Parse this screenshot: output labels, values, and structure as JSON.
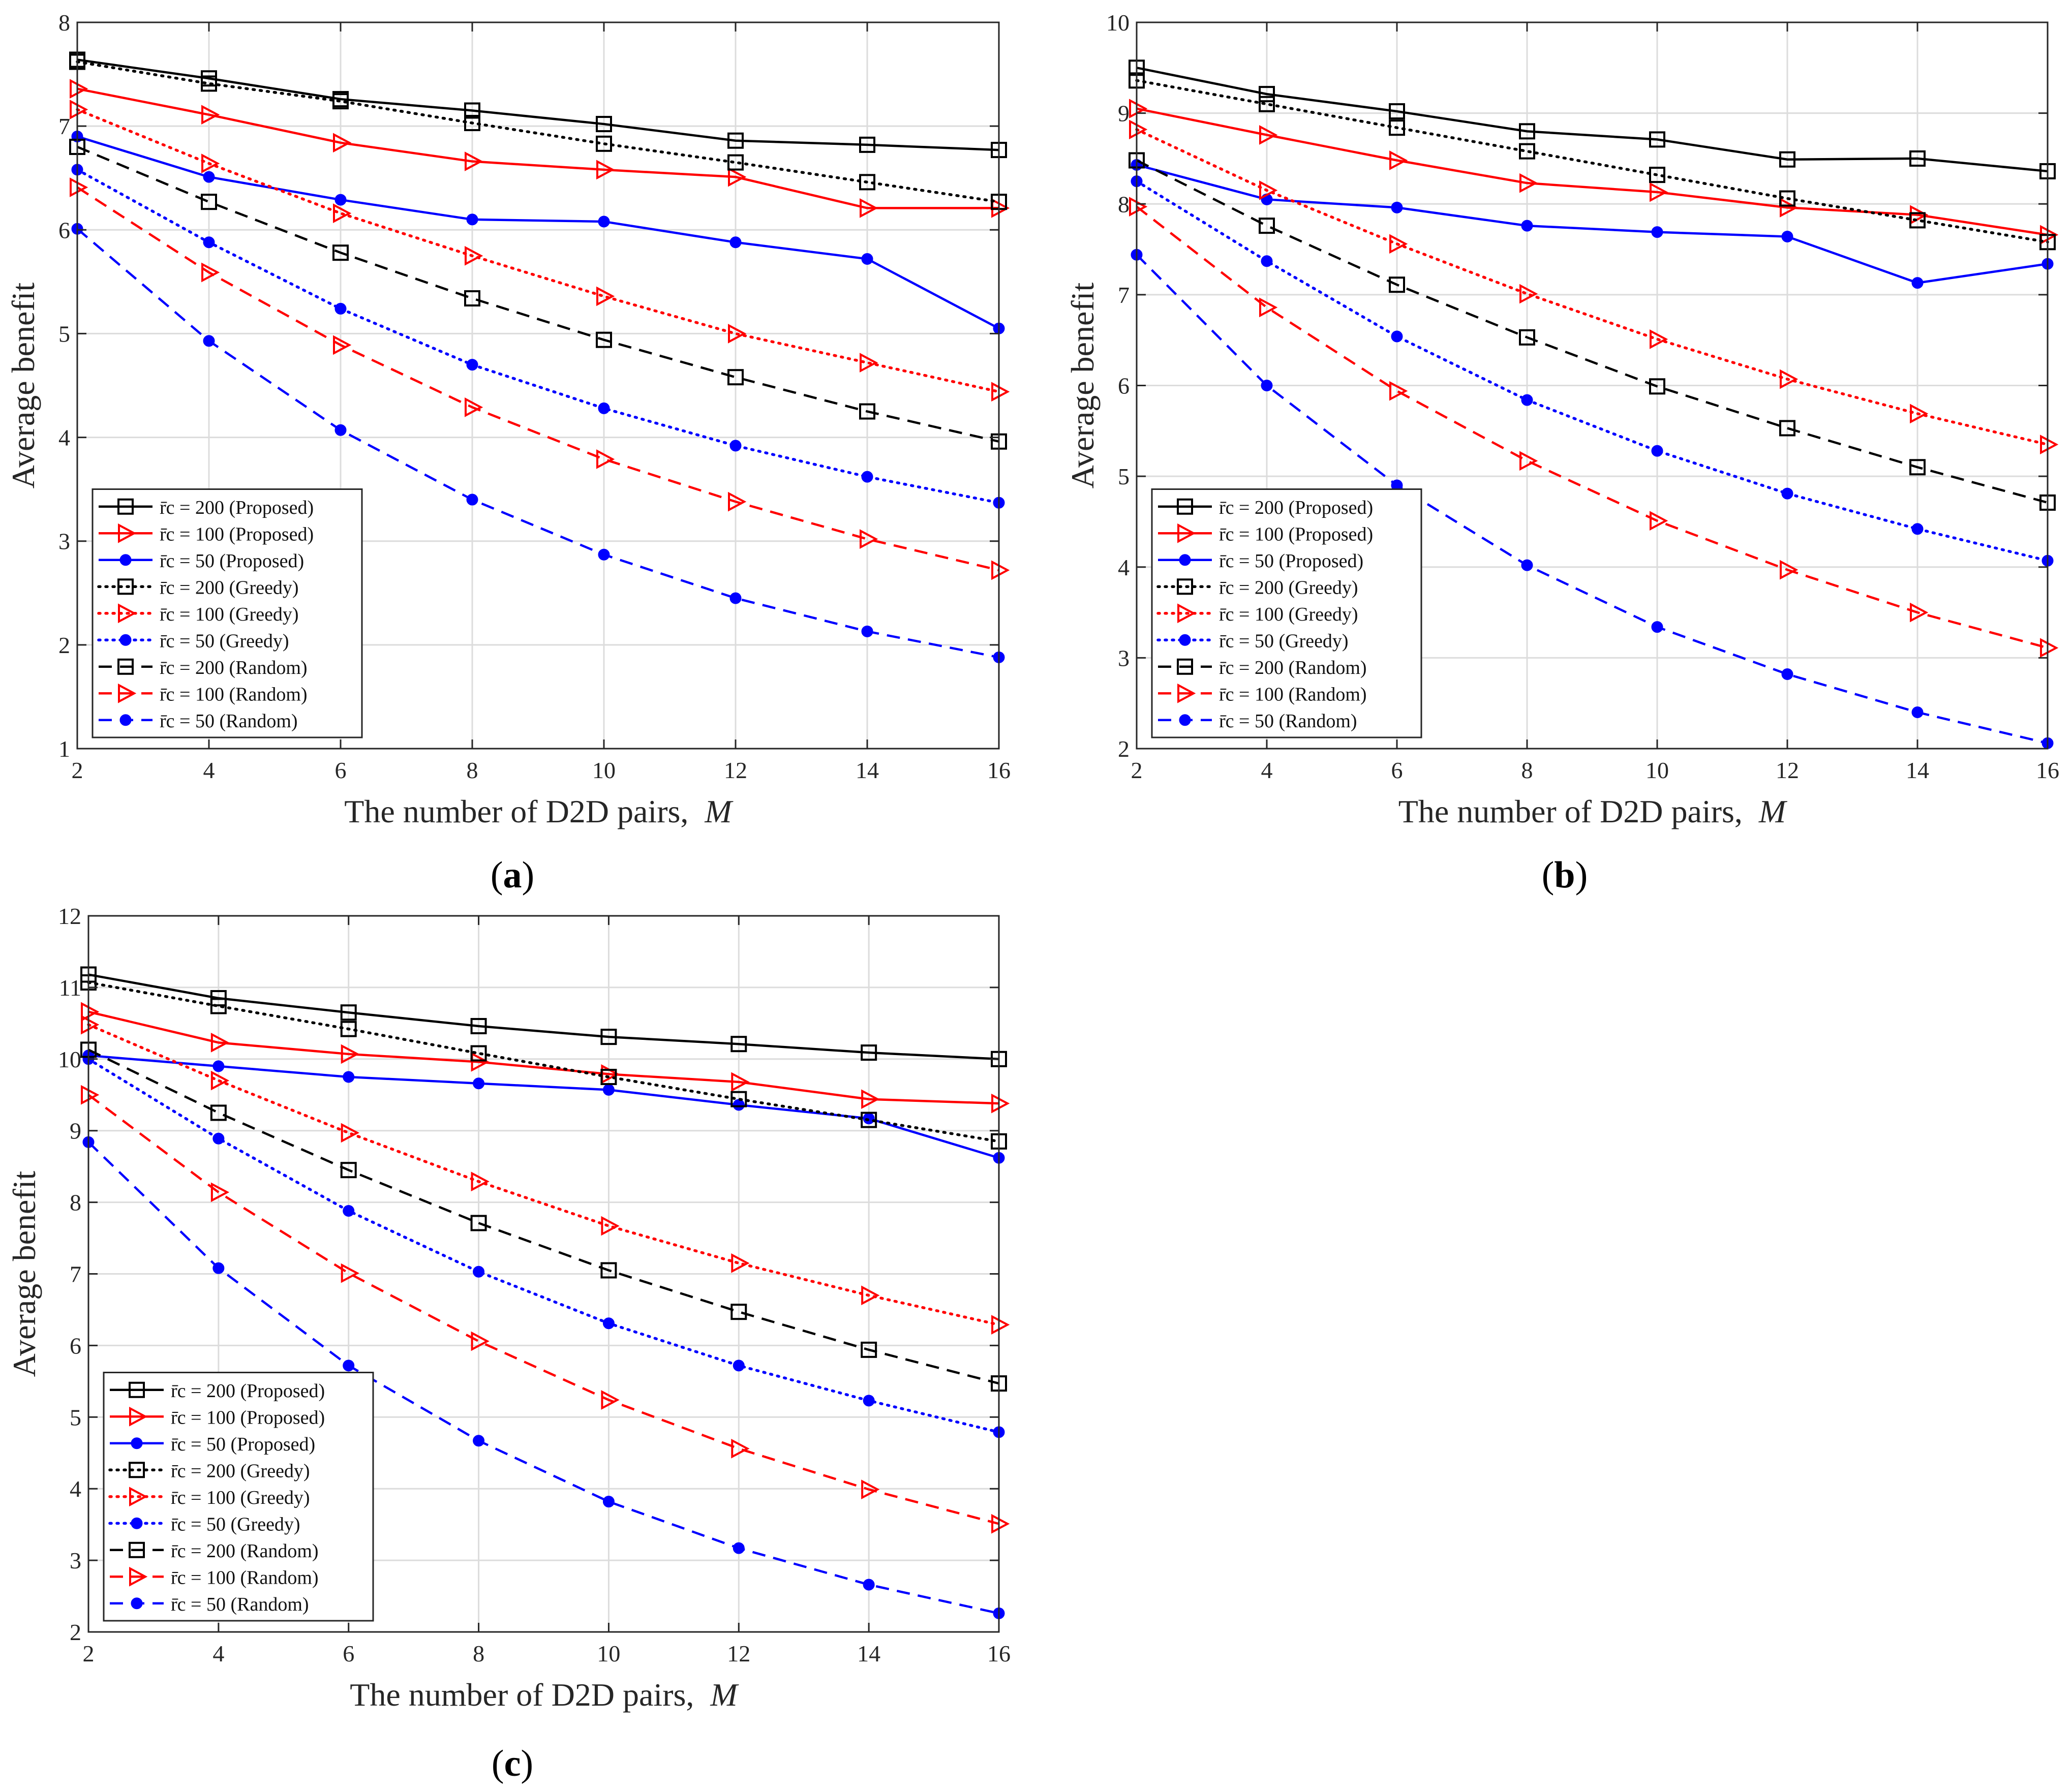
{
  "chart_data": [
    {
      "type": "line",
      "panel": "a",
      "caption_letter": "a",
      "xlabel": "The number of D2D pairs,",
      "xlabel_var": "M",
      "ylabel": "Average benefit",
      "xlim": [
        2,
        16
      ],
      "ylim": [
        1,
        8
      ],
      "xticks": [
        2,
        4,
        6,
        8,
        10,
        12,
        14,
        16
      ],
      "yticks": [
        1,
        2,
        3,
        4,
        5,
        6,
        7,
        8
      ],
      "grid": true,
      "legend_position": "bottom-left",
      "x": [
        2,
        4,
        6,
        8,
        10,
        12,
        14,
        16
      ],
      "series": [
        {
          "name": "r̄c = 200 (Proposed)",
          "color": "#000000",
          "dash": "solid",
          "marker": "square",
          "values": [
            7.64,
            7.46,
            7.26,
            7.15,
            7.02,
            6.86,
            6.82,
            6.77
          ]
        },
        {
          "name": "r̄c = 100 (Proposed)",
          "color": "#ff0000",
          "dash": "solid",
          "marker": "triangle",
          "values": [
            7.36,
            7.11,
            6.84,
            6.66,
            6.58,
            6.51,
            6.21,
            6.21
          ]
        },
        {
          "name": "r̄c = 50 (Proposed)",
          "color": "#0000ff",
          "dash": "solid",
          "marker": "dot",
          "values": [
            6.9,
            6.51,
            6.29,
            6.1,
            6.08,
            5.88,
            5.72,
            5.05
          ]
        },
        {
          "name": "r̄c = 200 (Greedy)",
          "color": "#000000",
          "dash": "dotted",
          "marker": "square",
          "values": [
            7.62,
            7.41,
            7.24,
            7.03,
            6.83,
            6.65,
            6.46,
            6.27
          ]
        },
        {
          "name": "r̄c = 100 (Greedy)",
          "color": "#ff0000",
          "dash": "dotted",
          "marker": "triangle",
          "values": [
            7.16,
            6.64,
            6.16,
            5.75,
            5.36,
            5.0,
            4.72,
            4.44
          ]
        },
        {
          "name": "r̄c = 50 (Greedy)",
          "color": "#0000ff",
          "dash": "dotted",
          "marker": "dot",
          "values": [
            6.58,
            5.88,
            5.24,
            4.7,
            4.28,
            3.92,
            3.62,
            3.37
          ]
        },
        {
          "name": "r̄c = 200 (Random)",
          "color": "#000000",
          "dash": "dashed",
          "marker": "square",
          "values": [
            6.8,
            6.27,
            5.78,
            5.34,
            4.94,
            4.58,
            4.25,
            3.96
          ]
        },
        {
          "name": "r̄c = 100 (Random)",
          "color": "#ff0000",
          "dash": "dashed",
          "marker": "triangle",
          "values": [
            6.41,
            5.59,
            4.89,
            4.29,
            3.79,
            3.38,
            3.02,
            2.72
          ]
        },
        {
          "name": "r̄c = 50 (Random)",
          "color": "#0000ff",
          "dash": "dashed",
          "marker": "dot",
          "values": [
            6.01,
            4.93,
            4.07,
            3.4,
            2.87,
            2.45,
            2.13,
            1.88
          ]
        }
      ]
    },
    {
      "type": "line",
      "panel": "b",
      "caption_letter": "b",
      "xlabel": "The number of D2D pairs,",
      "xlabel_var": "M",
      "ylabel": "Average benefit",
      "xlim": [
        2,
        16
      ],
      "ylim": [
        2,
        10
      ],
      "xticks": [
        2,
        4,
        6,
        8,
        10,
        12,
        14,
        16
      ],
      "yticks": [
        2,
        3,
        4,
        5,
        6,
        7,
        8,
        9,
        10
      ],
      "grid": true,
      "legend_position": "bottom-left",
      "x": [
        2,
        4,
        6,
        8,
        10,
        12,
        14,
        16
      ],
      "series": [
        {
          "name": "r̄c = 200 (Proposed)",
          "color": "#000000",
          "dash": "solid",
          "marker": "square",
          "values": [
            9.5,
            9.21,
            9.02,
            8.8,
            8.71,
            8.49,
            8.5,
            8.36
          ]
        },
        {
          "name": "r̄c = 100 (Proposed)",
          "color": "#ff0000",
          "dash": "solid",
          "marker": "triangle",
          "values": [
            9.05,
            8.76,
            8.48,
            8.23,
            8.13,
            7.96,
            7.88,
            7.66
          ]
        },
        {
          "name": "r̄c = 50 (Proposed)",
          "color": "#0000ff",
          "dash": "solid",
          "marker": "dot",
          "values": [
            8.43,
            8.05,
            7.96,
            7.76,
            7.69,
            7.64,
            7.13,
            7.34
          ]
        },
        {
          "name": "r̄c = 200 (Greedy)",
          "color": "#000000",
          "dash": "dotted",
          "marker": "square",
          "values": [
            9.36,
            9.1,
            8.84,
            8.58,
            8.32,
            8.06,
            7.82,
            7.58
          ]
        },
        {
          "name": "r̄c = 100 (Greedy)",
          "color": "#ff0000",
          "dash": "dotted",
          "marker": "triangle",
          "values": [
            8.82,
            8.15,
            7.56,
            7.01,
            6.51,
            6.07,
            5.69,
            5.35
          ]
        },
        {
          "name": "r̄c = 50 (Greedy)",
          "color": "#0000ff",
          "dash": "dotted",
          "marker": "dot",
          "values": [
            8.25,
            7.37,
            6.54,
            5.84,
            5.28,
            4.81,
            4.42,
            4.07
          ]
        },
        {
          "name": "r̄c = 200 (Random)",
          "color": "#000000",
          "dash": "dashed",
          "marker": "square",
          "values": [
            8.48,
            7.76,
            7.11,
            6.53,
            5.99,
            5.53,
            5.1,
            4.71
          ]
        },
        {
          "name": "r̄c = 100 (Random)",
          "color": "#ff0000",
          "dash": "dashed",
          "marker": "triangle",
          "values": [
            7.97,
            6.86,
            5.94,
            5.17,
            4.51,
            3.97,
            3.5,
            3.11
          ]
        },
        {
          "name": "r̄c = 50 (Random)",
          "color": "#0000ff",
          "dash": "dashed",
          "marker": "dot",
          "values": [
            7.44,
            6.0,
            4.9,
            4.02,
            3.34,
            2.82,
            2.4,
            2.06
          ]
        }
      ]
    },
    {
      "type": "line",
      "panel": "c",
      "caption_letter": "c",
      "xlabel": "The number of D2D pairs,",
      "xlabel_var": "M",
      "ylabel": "Average benefit",
      "xlim": [
        2,
        16
      ],
      "ylim": [
        2,
        12
      ],
      "xticks": [
        2,
        4,
        6,
        8,
        10,
        12,
        14,
        16
      ],
      "yticks": [
        2,
        3,
        4,
        5,
        6,
        7,
        8,
        9,
        10,
        11,
        12
      ],
      "grid": true,
      "legend_position": "bottom-left",
      "x": [
        2,
        4,
        6,
        8,
        10,
        12,
        14,
        16
      ],
      "series": [
        {
          "name": "r̄c = 200 (Proposed)",
          "color": "#000000",
          "dash": "solid",
          "marker": "square",
          "values": [
            11.18,
            10.85,
            10.65,
            10.46,
            10.31,
            10.21,
            10.09,
            10.0
          ]
        },
        {
          "name": "r̄c = 100 (Proposed)",
          "color": "#ff0000",
          "dash": "solid",
          "marker": "triangle",
          "values": [
            10.66,
            10.23,
            10.07,
            9.96,
            9.79,
            9.68,
            9.44,
            9.38
          ]
        },
        {
          "name": "r̄c = 50 (Proposed)",
          "color": "#0000ff",
          "dash": "solid",
          "marker": "dot",
          "values": [
            10.05,
            9.9,
            9.75,
            9.66,
            9.57,
            9.36,
            9.17,
            8.62
          ]
        },
        {
          "name": "r̄c = 200 (Greedy)",
          "color": "#000000",
          "dash": "dotted",
          "marker": "square",
          "values": [
            11.07,
            10.74,
            10.42,
            10.08,
            9.75,
            9.44,
            9.15,
            8.85
          ]
        },
        {
          "name": "r̄c = 100 (Greedy)",
          "color": "#ff0000",
          "dash": "dotted",
          "marker": "triangle",
          "values": [
            10.48,
            9.7,
            8.97,
            8.29,
            7.67,
            7.15,
            6.7,
            6.29
          ]
        },
        {
          "name": "r̄c = 50 (Greedy)",
          "color": "#0000ff",
          "dash": "dotted",
          "marker": "dot",
          "values": [
            10.0,
            8.89,
            7.88,
            7.03,
            6.31,
            5.72,
            5.23,
            4.79
          ]
        },
        {
          "name": "r̄c = 200 (Random)",
          "color": "#000000",
          "dash": "dashed",
          "marker": "square",
          "values": [
            10.13,
            9.25,
            8.45,
            7.71,
            7.05,
            6.47,
            5.94,
            5.47
          ]
        },
        {
          "name": "r̄c = 100 (Random)",
          "color": "#ff0000",
          "dash": "dashed",
          "marker": "triangle",
          "values": [
            9.5,
            8.14,
            7.01,
            6.06,
            5.24,
            4.56,
            3.99,
            3.51
          ]
        },
        {
          "name": "r̄c = 50 (Random)",
          "color": "#0000ff",
          "dash": "dashed",
          "marker": "dot",
          "values": [
            8.84,
            7.08,
            5.72,
            4.67,
            3.82,
            3.17,
            2.66,
            2.26
          ]
        }
      ]
    }
  ]
}
